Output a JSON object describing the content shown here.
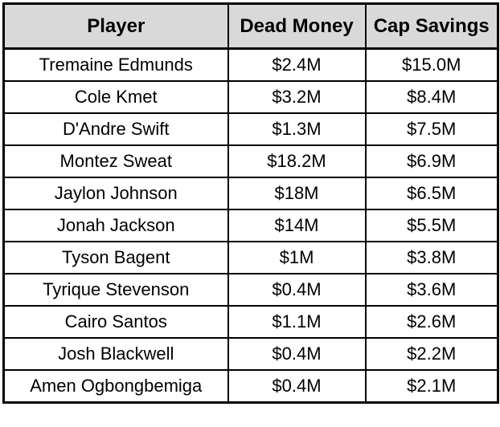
{
  "colors": {
    "header_bg": "#d9d9d9",
    "border": "#000000",
    "row_bg": "#ffffff",
    "text": "#000000"
  },
  "chart_data": {
    "type": "table",
    "title": "",
    "columns": [
      "Player",
      "Dead Money",
      "Cap Savings"
    ],
    "rows": [
      [
        "Tremaine Edmunds",
        "$2.4M",
        "$15.0M"
      ],
      [
        "Cole Kmet",
        "$3.2M",
        "$8.4M"
      ],
      [
        "D'Andre Swift",
        "$1.3M",
        "$7.5M"
      ],
      [
        "Montez Sweat",
        "$18.2M",
        "$6.9M"
      ],
      [
        "Jaylon Johnson",
        "$18M",
        "$6.5M"
      ],
      [
        "Jonah Jackson",
        "$14M",
        "$5.5M"
      ],
      [
        "Tyson Bagent",
        "$1M",
        "$3.8M"
      ],
      [
        "Tyrique Stevenson",
        "$0.4M",
        "$3.6M"
      ],
      [
        "Cairo Santos",
        "$1.1M",
        "$2.6M"
      ],
      [
        "Josh Blackwell",
        "$0.4M",
        "$2.2M"
      ],
      [
        "Amen Ogbongbemiga",
        "$0.4M",
        "$2.1M"
      ]
    ]
  }
}
